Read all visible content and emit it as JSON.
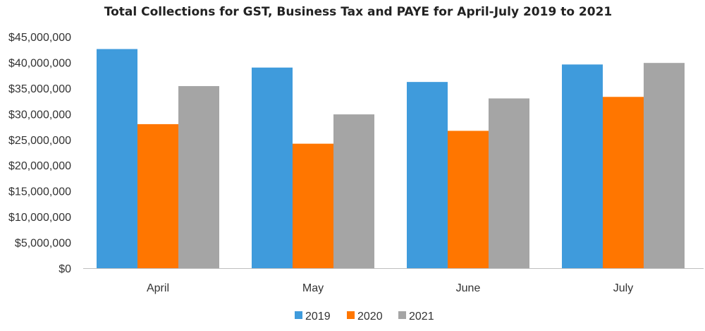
{
  "chart_data": {
    "type": "bar",
    "title": "Total Collections for GST, Business Tax and PAYE for April-July 2019 to 2021",
    "xlabel": "",
    "ylabel": "",
    "categories": [
      "April",
      "May",
      "June",
      "July"
    ],
    "series": [
      {
        "name": "2019",
        "color": "#3F9BDC",
        "values": [
          42600000,
          39000000,
          36200000,
          39600000
        ]
      },
      {
        "name": "2020",
        "color": "#FF7600",
        "values": [
          28000000,
          24200000,
          26700000,
          33300000
        ]
      },
      {
        "name": "2021",
        "color": "#A5A5A5",
        "values": [
          35400000,
          29900000,
          33000000,
          39900000
        ]
      }
    ],
    "ylim": [
      0,
      45000000
    ],
    "yticks": [
      0,
      5000000,
      10000000,
      15000000,
      20000000,
      25000000,
      30000000,
      35000000,
      40000000,
      45000000
    ],
    "ytick_labels": [
      "$0",
      "$5,000,000",
      "$10,000,000",
      "$15,000,000",
      "$20,000,000",
      "$25,000,000",
      "$30,000,000",
      "$35,000,000",
      "$40,000,000",
      "$45,000,000"
    ],
    "grid": false,
    "legend": "bottom-center",
    "axis_color": "#BFBFBF"
  }
}
